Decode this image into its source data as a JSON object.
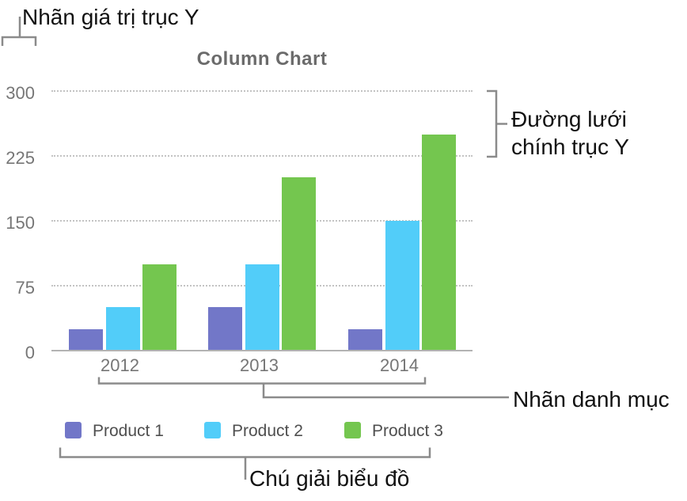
{
  "figure": {
    "title": "Column Chart"
  },
  "annotations": {
    "y_value_labels": "Nhãn giá trị trục Y",
    "y_major_gridlines": {
      "line1": "Đường lưới",
      "line2": "chính trục Y"
    },
    "category_labels": "Nhãn danh mục",
    "chart_legend": "Chú giải biểu đồ"
  },
  "chart_data": {
    "type": "bar",
    "title": "Column Chart",
    "categories": [
      "2012",
      "2013",
      "2014"
    ],
    "series": [
      {
        "name": "Product 1",
        "color": "#7277C8",
        "values": [
          25,
          50,
          25
        ]
      },
      {
        "name": "Product 2",
        "color": "#52CDF9",
        "values": [
          50,
          100,
          150
        ]
      },
      {
        "name": "Product 3",
        "color": "#74C64F",
        "values": [
          100,
          200,
          250
        ]
      }
    ],
    "y_ticks": [
      300,
      225,
      150,
      75,
      0
    ],
    "ylim": [
      0,
      300
    ],
    "xlabel": "",
    "ylabel": "",
    "grid": "horizontal-dotted",
    "legend_position": "bottom"
  },
  "colors": {
    "axis_line": "#b3b3b3",
    "gridline": "#c3c3c3",
    "tick_text": "#767676",
    "legend_text": "#4f4f4f",
    "title_text": "#6b6b6b",
    "callout_line": "#8b8b8b",
    "annotation_text": "#111111"
  }
}
